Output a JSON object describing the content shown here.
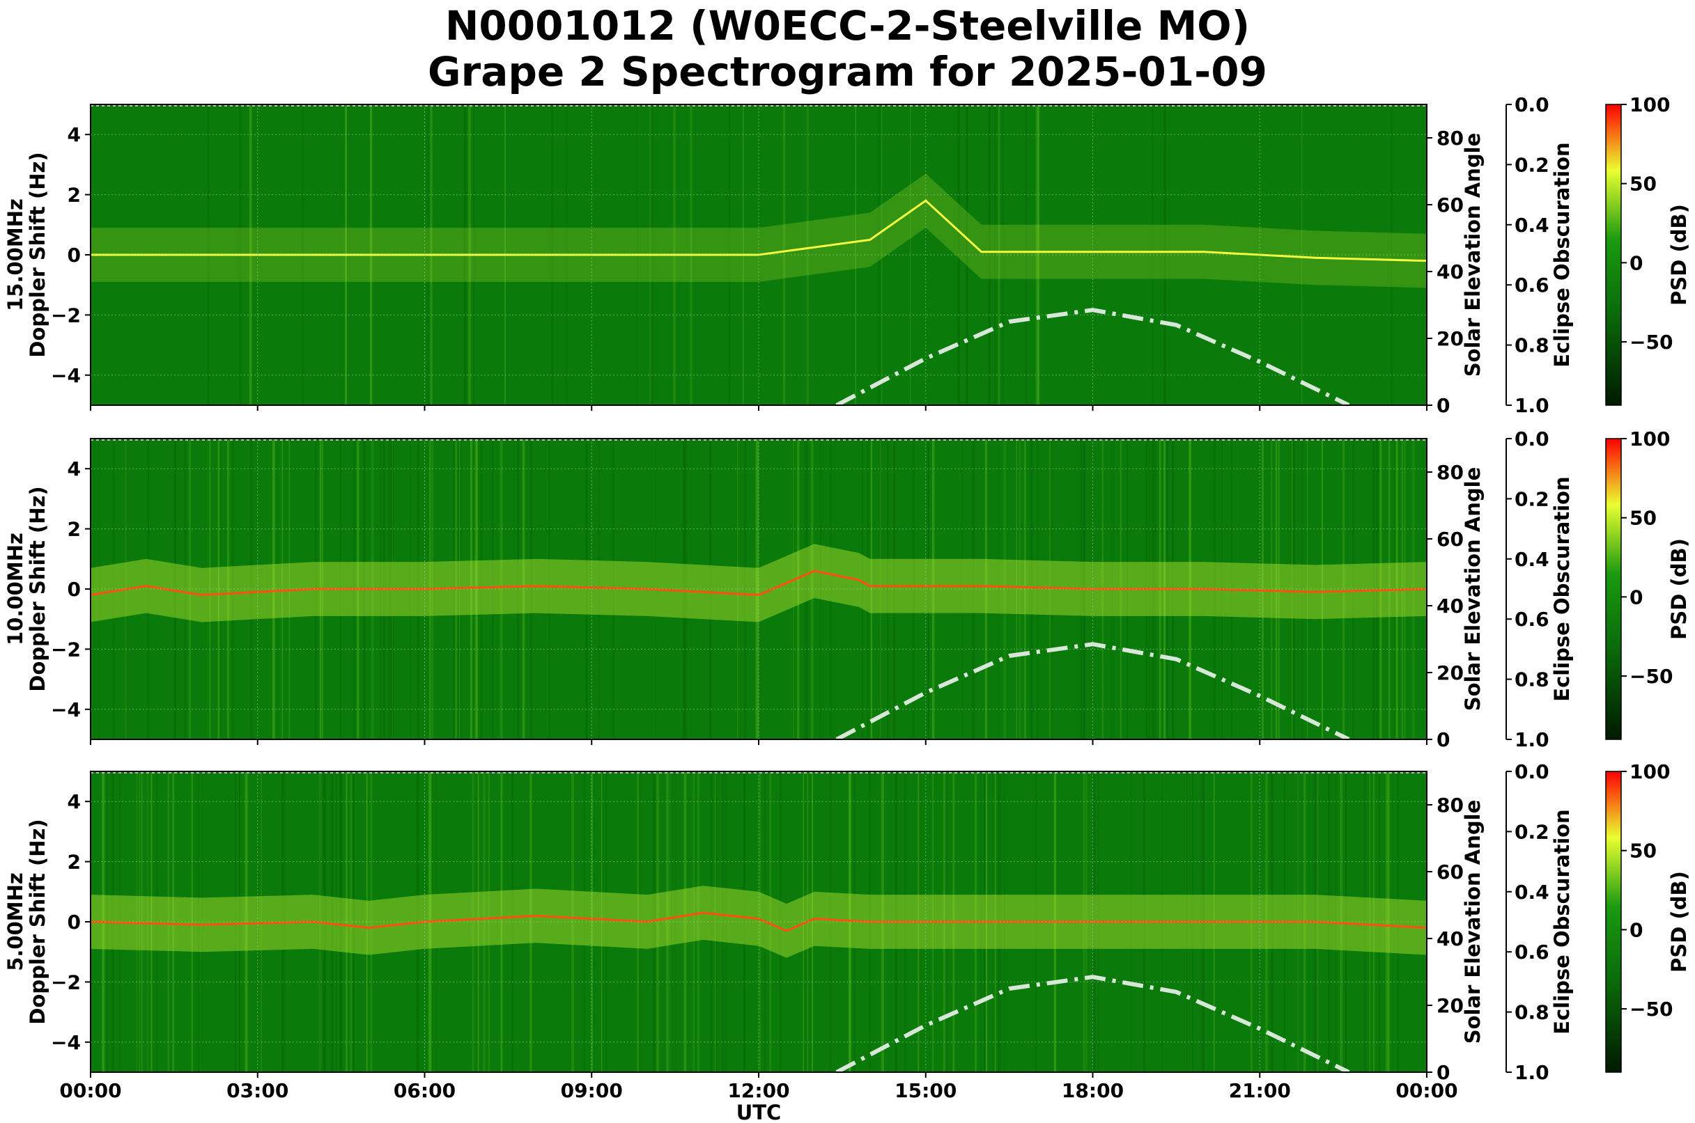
{
  "title_line1": "N0001012 (W0ECC-2-Steelville MO)",
  "title_line2": "Grape 2 Spectrogram for 2025-01-09",
  "xlabel": "UTC",
  "x_ticks": [
    "00:00",
    "03:00",
    "06:00",
    "09:00",
    "12:00",
    "15:00",
    "18:00",
    "21:00",
    "00:00"
  ],
  "colors": {
    "low": "#003300",
    "mid": "#0a7a0a",
    "high": "#f0ff40",
    "peak": "#ff0000",
    "solar_curve": "#d8e8d8"
  },
  "chart_data": [
    {
      "type": "heatmap",
      "panel_label": "15.00MHz",
      "ylabel": "Doppler Shift (Hz)",
      "ylim": [
        -5,
        5
      ],
      "y_ticks": [
        4,
        2,
        0,
        -2,
        -4
      ],
      "xlim_hours": [
        0,
        24
      ],
      "right_axis_label": "Solar Elevation Angle",
      "right_axis_ylim": [
        0,
        90
      ],
      "right_axis_ticks": [
        80,
        60,
        40,
        20,
        0
      ],
      "eclipse_label": "Eclipse Obscuration",
      "eclipse_ticks": [
        "0.0",
        "0.2",
        "0.4",
        "0.6",
        "0.8",
        "1.0"
      ],
      "colorbar_label": "PSD (dB)",
      "colorbar_ticks": [
        "100",
        "50",
        "0",
        "−50"
      ],
      "colorbar_range": [
        -90,
        100
      ],
      "solar_elevation_series": {
        "x_hours": [
          13.4,
          15,
          16.5,
          18,
          19.5,
          21,
          22.6
        ],
        "y_deg": [
          0,
          14,
          25,
          28.5,
          24,
          13,
          0
        ]
      },
      "doppler_trace": {
        "x_hours": [
          0,
          2,
          4,
          6,
          8,
          10,
          12,
          14,
          15,
          16,
          18,
          20,
          22,
          24
        ],
        "y_hz": [
          0,
          0,
          0,
          0,
          0,
          0,
          0,
          0.5,
          1.8,
          0.1,
          0.1,
          0.1,
          -0.1,
          -0.2
        ]
      }
    },
    {
      "type": "heatmap",
      "panel_label": "10.00MHz",
      "ylabel": "Doppler Shift (Hz)",
      "ylim": [
        -5,
        5
      ],
      "y_ticks": [
        4,
        2,
        0,
        -2,
        -4
      ],
      "xlim_hours": [
        0,
        24
      ],
      "right_axis_label": "Solar Elevation Angle",
      "right_axis_ylim": [
        0,
        90
      ],
      "right_axis_ticks": [
        80,
        60,
        40,
        20,
        0
      ],
      "eclipse_label": "Eclipse Obscuration",
      "eclipse_ticks": [
        "0.0",
        "0.2",
        "0.4",
        "0.6",
        "0.8",
        "1.0"
      ],
      "colorbar_label": "PSD (dB)",
      "colorbar_ticks": [
        "100",
        "50",
        "0",
        "−50"
      ],
      "colorbar_range": [
        -90,
        100
      ],
      "solar_elevation_series": {
        "x_hours": [
          13.4,
          15,
          16.5,
          18,
          19.5,
          21,
          22.6
        ],
        "y_deg": [
          0,
          14,
          25,
          28.5,
          24,
          13,
          0
        ]
      },
      "doppler_trace": {
        "x_hours": [
          0,
          1,
          2,
          4,
          6,
          8,
          10,
          12,
          13,
          13.8,
          14,
          16,
          18,
          20,
          22,
          24
        ],
        "y_hz": [
          -0.2,
          0.1,
          -0.2,
          0,
          0,
          0.1,
          0,
          -0.2,
          0.6,
          0.3,
          0.1,
          0.1,
          0,
          0,
          -0.1,
          0
        ]
      }
    },
    {
      "type": "heatmap",
      "panel_label": "5.00MHz",
      "ylabel": "Doppler Shift (Hz)",
      "ylim": [
        -5,
        5
      ],
      "y_ticks": [
        4,
        2,
        0,
        -2,
        -4
      ],
      "xlim_hours": [
        0,
        24
      ],
      "right_axis_label": "Solar Elevation Angle",
      "right_axis_ylim": [
        0,
        90
      ],
      "right_axis_ticks": [
        80,
        60,
        40,
        20,
        0
      ],
      "eclipse_label": "Eclipse Obscuration",
      "eclipse_ticks": [
        "0.0",
        "0.2",
        "0.4",
        "0.6",
        "0.8",
        "1.0"
      ],
      "colorbar_label": "PSD (dB)",
      "colorbar_ticks": [
        "100",
        "50",
        "0",
        "−50"
      ],
      "colorbar_range": [
        -90,
        100
      ],
      "solar_elevation_series": {
        "x_hours": [
          13.4,
          15,
          16.5,
          18,
          19.5,
          21,
          22.6
        ],
        "y_deg": [
          0,
          14,
          25,
          28.5,
          24,
          13,
          0
        ]
      },
      "doppler_trace": {
        "x_hours": [
          0,
          2,
          4,
          5,
          6,
          8,
          10,
          11,
          12,
          12.5,
          13,
          14,
          16,
          18,
          20,
          22,
          24
        ],
        "y_hz": [
          0,
          -0.1,
          0,
          -0.2,
          0,
          0.2,
          0,
          0.3,
          0.1,
          -0.3,
          0.1,
          0,
          0,
          0,
          0,
          0,
          -0.2
        ]
      }
    }
  ]
}
